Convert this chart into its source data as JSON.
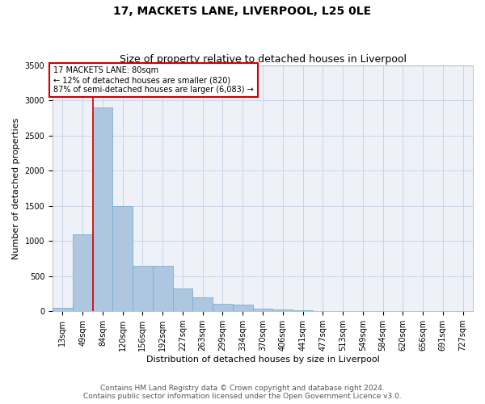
{
  "title_line1": "17, MACKETS LANE, LIVERPOOL, L25 0LE",
  "title_line2": "Size of property relative to detached houses in Liverpool",
  "xlabel": "Distribution of detached houses by size in Liverpool",
  "ylabel": "Number of detached properties",
  "categories": [
    "13sqm",
    "49sqm",
    "84sqm",
    "120sqm",
    "156sqm",
    "192sqm",
    "227sqm",
    "263sqm",
    "299sqm",
    "334sqm",
    "370sqm",
    "406sqm",
    "441sqm",
    "477sqm",
    "513sqm",
    "549sqm",
    "584sqm",
    "620sqm",
    "656sqm",
    "691sqm",
    "727sqm"
  ],
  "values": [
    50,
    1100,
    2900,
    1500,
    650,
    650,
    320,
    195,
    110,
    90,
    40,
    20,
    10,
    8,
    5,
    3,
    3,
    2,
    1,
    1,
    0
  ],
  "bar_color": "#aec6df",
  "bar_edge_color": "#7aafd4",
  "property_line_x": 1.5,
  "annotation_title": "17 MACKETS LANE: 80sqm",
  "annotation_line1": "← 12% of detached houses are smaller (820)",
  "annotation_line2": "87% of semi-detached houses are larger (6,083) →",
  "annotation_box_facecolor": "#ffffff",
  "annotation_box_edgecolor": "#cc0000",
  "property_line_color": "#cc0000",
  "ylim": [
    0,
    3500
  ],
  "yticks": [
    0,
    500,
    1000,
    1500,
    2000,
    2500,
    3000,
    3500
  ],
  "grid_color": "#c8d4e8",
  "background_color": "#eef2f8",
  "footer_line1": "Contains HM Land Registry data © Crown copyright and database right 2024.",
  "footer_line2": "Contains public sector information licensed under the Open Government Licence v3.0.",
  "title1_fontsize": 10,
  "title2_fontsize": 9,
  "axis_label_fontsize": 8,
  "tick_fontsize": 7,
  "annot_fontsize": 7,
  "footer_fontsize": 6.5
}
